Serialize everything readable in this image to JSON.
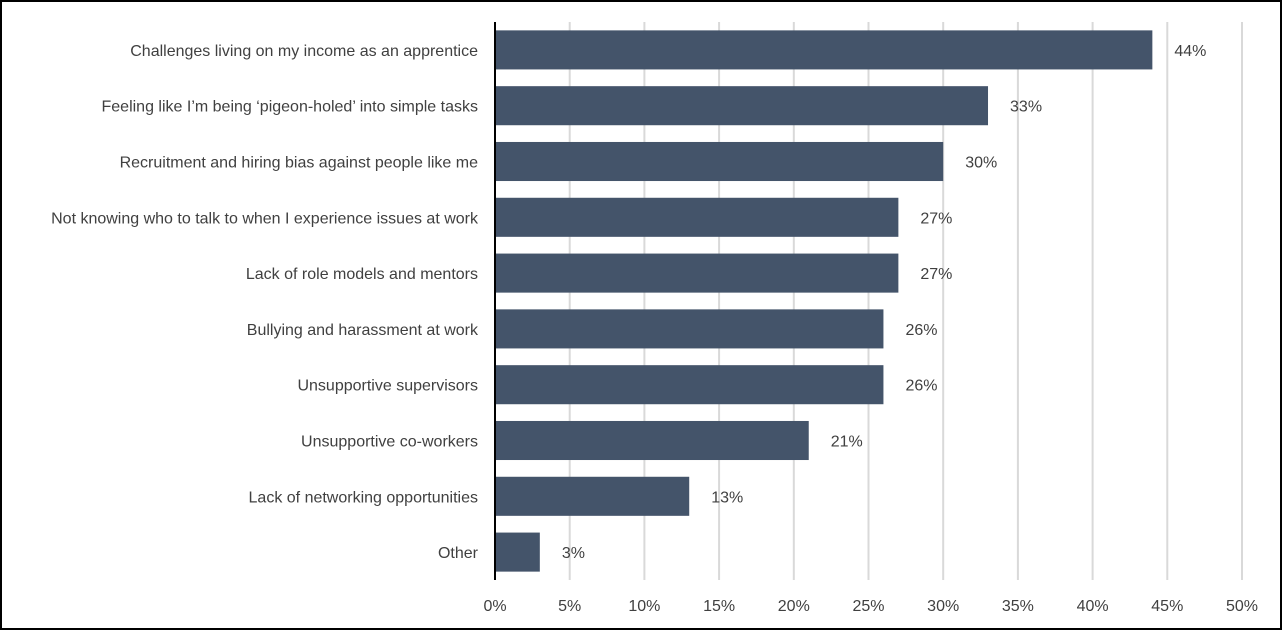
{
  "chart_data": {
    "type": "bar",
    "orientation": "horizontal",
    "title": "",
    "xlabel": "",
    "ylabel": "",
    "categories": [
      "Challenges living on my income as an apprentice",
      "Feeling like I’m being ‘pigeon-holed’ into simple tasks",
      "Recruitment and hiring bias against people like me",
      "Not knowing who to talk to when I experience issues at work",
      "Lack of role models and mentors",
      "Bullying and harassment at work",
      "Unsupportive supervisors",
      "Unsupportive co-workers",
      "Lack of networking opportunities",
      "Other"
    ],
    "values": [
      44,
      33,
      30,
      27,
      27,
      26,
      26,
      21,
      13,
      3
    ],
    "data_labels": [
      "44%",
      "33%",
      "30%",
      "27%",
      "27%",
      "26%",
      "26%",
      "21%",
      "13%",
      "3%"
    ],
    "xlim": [
      0,
      50
    ],
    "xticks": [
      0,
      5,
      10,
      15,
      20,
      25,
      30,
      35,
      40,
      45,
      50
    ],
    "xtick_labels": [
      "0%",
      "5%",
      "10%",
      "15%",
      "20%",
      "25%",
      "30%",
      "35%",
      "40%",
      "45%",
      "50%"
    ],
    "grid": "vertical",
    "legend": "none",
    "colors": {
      "bar": "#44546A",
      "grid": "#D9D9D9",
      "axis": "#000000",
      "text": "#404040"
    }
  }
}
